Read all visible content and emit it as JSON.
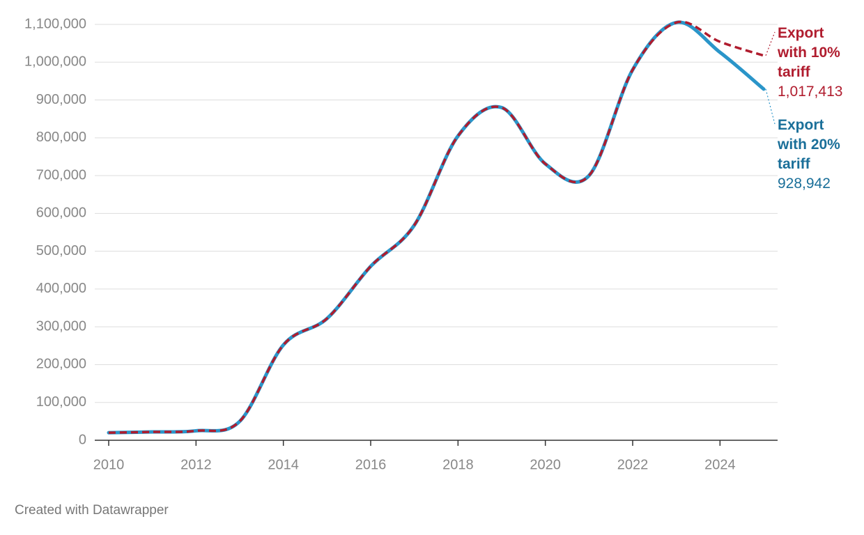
{
  "chart_data": {
    "type": "line",
    "x": [
      2010,
      2011,
      2012,
      2013,
      2014,
      2015,
      2016,
      2017,
      2018,
      2019,
      2020,
      2021,
      2022,
      2023,
      2024,
      2025
    ],
    "series": [
      {
        "name": "Export with 20% tariff",
        "color": "#2a95c9",
        "label_color": "#1a6f99",
        "dashed": false,
        "values": [
          20000,
          22000,
          25000,
          50000,
          252000,
          322000,
          460000,
          569000,
          805000,
          880000,
          731000,
          700000,
          980000,
          1105000,
          1026000,
          928942
        ],
        "value_labels": [
          null,
          null,
          null,
          null,
          null,
          null,
          null,
          null,
          null,
          null,
          null,
          null,
          null,
          null,
          null,
          "928,942"
        ]
      },
      {
        "name": "Export with 10% tariff",
        "color": "#b01c2e",
        "label_color": "#b01c2e",
        "dashed": true,
        "values": [
          20000,
          22000,
          25000,
          50000,
          252000,
          322000,
          460000,
          569000,
          805000,
          880000,
          731000,
          700000,
          980000,
          1105000,
          1054000,
          1017413
        ],
        "value_labels": [
          null,
          null,
          null,
          null,
          null,
          null,
          null,
          null,
          null,
          null,
          null,
          null,
          null,
          null,
          null,
          "1,017,413"
        ]
      }
    ],
    "xlim": [
      2010,
      2025
    ],
    "ylim": [
      0,
      1100000
    ],
    "xticks": [
      2010,
      2012,
      2014,
      2016,
      2018,
      2020,
      2022,
      2024
    ],
    "yticks": [
      0,
      {
        "value": 100000,
        "label": "100,000"
      },
      {
        "value": 200000,
        "label": "200,000"
      },
      {
        "value": 300000,
        "label": "300,000"
      },
      {
        "value": 400000,
        "label": "400,000"
      },
      {
        "value": 500000,
        "label": "500,000"
      },
      {
        "value": 600000,
        "label": "600,000"
      },
      {
        "value": 700000,
        "label": "700,000"
      },
      {
        "value": 800000,
        "label": "800,000"
      },
      {
        "value": 900000,
        "label": "900,000"
      },
      {
        "value": 1000000,
        "label": "1,000,000"
      },
      {
        "value": 1100000,
        "label": "1,100,000"
      }
    ],
    "grid": true,
    "footer": "Created with Datawrapper"
  }
}
